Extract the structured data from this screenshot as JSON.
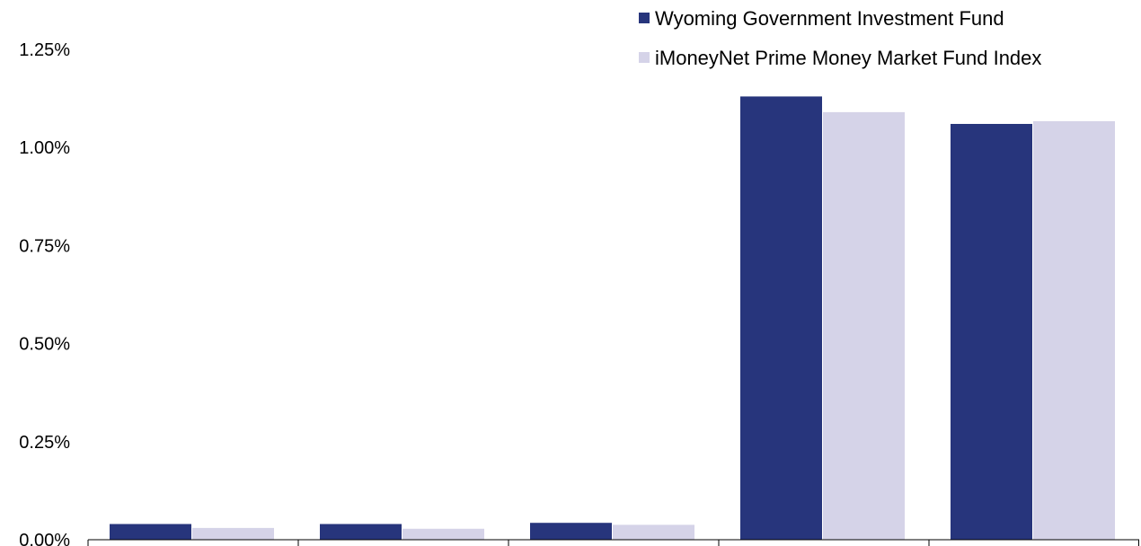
{
  "chart_data": {
    "type": "bar",
    "categories": [
      "",
      "",
      "",
      "",
      ""
    ],
    "series": [
      {
        "name": "Wyoming Government Investment Fund",
        "values": [
          0.04,
          0.04,
          0.043,
          1.13,
          1.06
        ],
        "color": "#27357c"
      },
      {
        "name": "iMoneyNet Prime Money Market Fund Index",
        "values": [
          0.03,
          0.028,
          0.038,
          1.09,
          1.067
        ],
        "color": "#d5d3e8"
      }
    ],
    "title": "",
    "xlabel": "",
    "ylabel": "",
    "ylim": [
      0,
      1.25
    ],
    "yticks": [
      "0.00%",
      "0.25%",
      "0.50%",
      "0.75%",
      "1.00%",
      "1.25%"
    ],
    "grid": false,
    "legend_position": "top-right"
  }
}
